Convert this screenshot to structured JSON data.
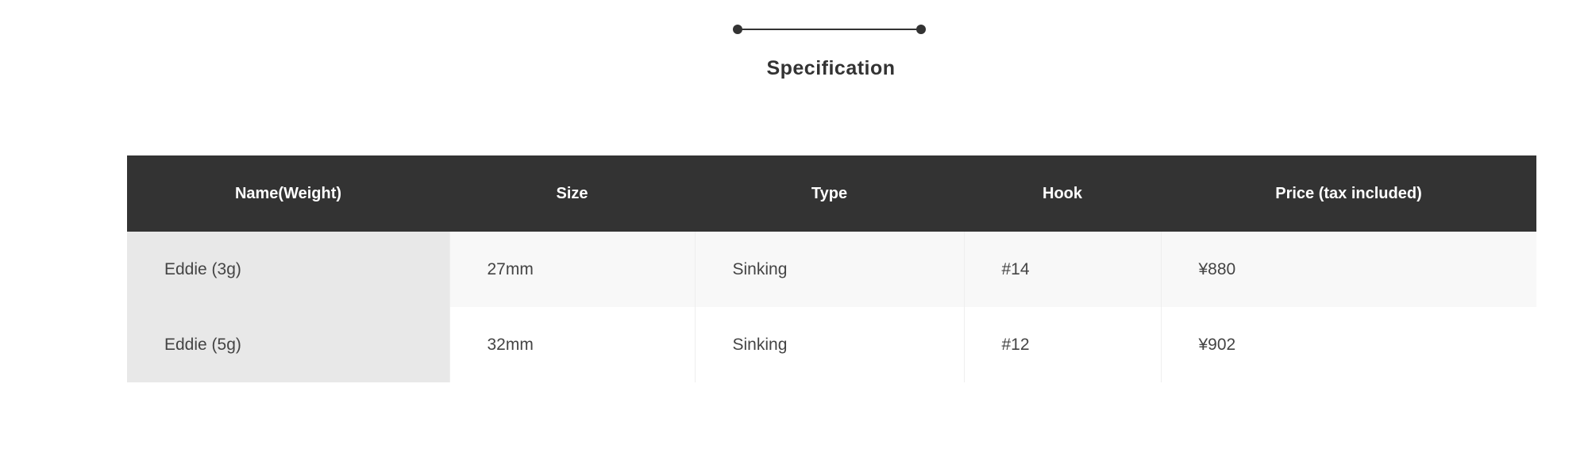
{
  "section": {
    "title": "Specification"
  },
  "table": {
    "headers": [
      "Name(Weight)",
      "Size",
      "Type",
      "Hook",
      "Price (tax included)"
    ],
    "rows": [
      [
        "Eddie (3g)",
        "27mm",
        "Sinking",
        "#14",
        "¥880"
      ],
      [
        "Eddie (5g)",
        "32mm",
        "Sinking",
        "#12",
        "¥902"
      ]
    ]
  }
}
